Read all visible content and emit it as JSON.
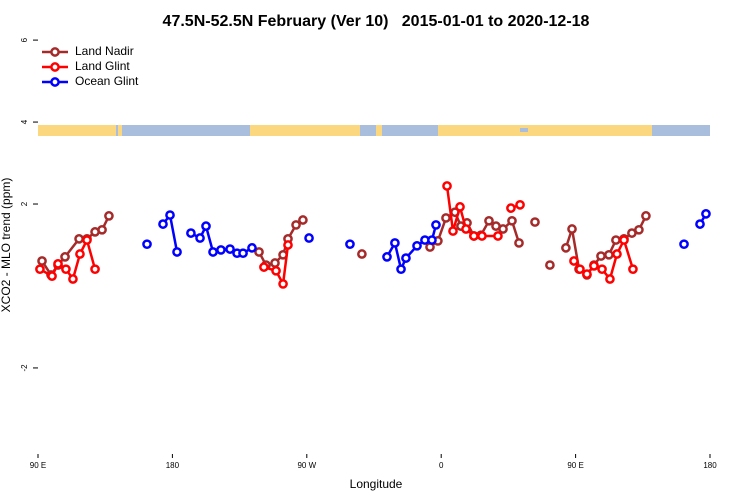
{
  "chart_data": {
    "type": "line",
    "title": "47.5N-52.5N February (Ver 10)   2015-01-01 to 2020-12-18",
    "x_label": "Longitude",
    "y_label": "XCO2 - MLO trend (ppm)",
    "xlim": [
      90,
      540
    ],
    "xticks": [
      {
        "value": 90,
        "label": "90 E"
      },
      {
        "value": 180,
        "label": "180"
      },
      {
        "value": 270,
        "label": "90 W"
      },
      {
        "value": 360,
        "label": "0"
      },
      {
        "value": 450,
        "label": "90 E"
      },
      {
        "value": 540,
        "label": "180"
      }
    ],
    "ylim": [
      -4.1,
      6.1
    ],
    "yticks": [
      -2,
      2,
      4,
      6
    ],
    "legend": "top-left",
    "series": [
      {
        "name": "Land Nadir",
        "color": "#a52a2a",
        "x": [
          92.7,
          98.7,
          103.4,
          108.1,
          117.5,
          122.8,
          128.2,
          132.9,
          137.5,
          null,
          238.0,
          242.7,
          248.7,
          254.1,
          257.4,
          262.8,
          267.4,
          null,
          306.9,
          null,
          352.5,
          357.8,
          363.2,
          369.2,
          373.2,
          377.3,
          381.9,
          386.6,
          392.0,
          396.7,
          401.4,
          407.4,
          412.1,
          null,
          422.8,
          null,
          432.8,
          null,
          443.5,
          447.6,
          452.3,
          457.6,
          462.3,
          467.0,
          472.3,
          477.0,
          482.4,
          487.7,
          492.4,
          497.1
        ],
        "values": [
          0.61,
          0.27,
          0.51,
          0.71,
          1.15,
          1.15,
          1.32,
          1.37,
          1.71,
          null,
          0.83,
          0.51,
          0.56,
          0.76,
          1.15,
          1.49,
          1.61,
          null,
          0.78,
          null,
          0.95,
          1.1,
          1.66,
          1.8,
          1.46,
          1.54,
          1.22,
          1.24,
          1.59,
          1.46,
          1.39,
          1.59,
          1.05,
          null,
          1.56,
          null,
          0.51,
          null,
          0.93,
          1.39,
          0.41,
          0.27,
          0.51,
          0.73,
          0.76,
          1.12,
          1.15,
          1.29,
          1.37,
          1.71
        ]
      },
      {
        "name": "Land Glint",
        "color": "#ff0000",
        "x": [
          91.3,
          99.4,
          103.4,
          108.7,
          113.4,
          118.1,
          122.8,
          128.2,
          null,
          241.3,
          249.4,
          254.1,
          257.4,
          null,
          363.9,
          367.9,
          372.6,
          376.6,
          381.9,
          387.3,
          398.0,
          null,
          406.7,
          412.8,
          null,
          448.9,
          452.9,
          457.6,
          462.3,
          467.7,
          473.0,
          477.7,
          482.4,
          488.4
        ],
        "values": [
          0.41,
          0.24,
          0.54,
          0.41,
          0.17,
          0.78,
          1.12,
          0.41,
          null,
          0.46,
          0.37,
          0.05,
          1.0,
          null,
          2.44,
          1.34,
          1.93,
          1.39,
          1.22,
          1.22,
          1.22,
          null,
          1.9,
          1.98,
          null,
          0.61,
          0.41,
          0.29,
          0.49,
          0.41,
          0.17,
          0.78,
          1.12,
          0.41
        ]
      },
      {
        "name": "Ocean Glint",
        "color": "#0000ff",
        "x": [
          163.0,
          null,
          173.7,
          178.4,
          183.1,
          null,
          192.4,
          198.5,
          202.5,
          207.2,
          212.5,
          218.6,
          223.3,
          227.3,
          233.3,
          null,
          271.5,
          null,
          298.9,
          null,
          323.7,
          329.0,
          333.1,
          336.4,
          343.8,
          349.1,
          353.8,
          356.5,
          null,
          522.6,
          null,
          533.3,
          537.3
        ],
        "values": [
          1.02,
          null,
          1.51,
          1.73,
          0.83,
          null,
          1.29,
          1.17,
          1.46,
          0.83,
          0.88,
          0.9,
          0.8,
          0.8,
          0.93,
          null,
          1.17,
          null,
          1.02,
          null,
          0.71,
          1.05,
          0.41,
          0.68,
          0.98,
          1.12,
          1.12,
          1.49,
          null,
          1.02,
          null,
          1.51,
          1.76
        ]
      }
    ]
  }
}
